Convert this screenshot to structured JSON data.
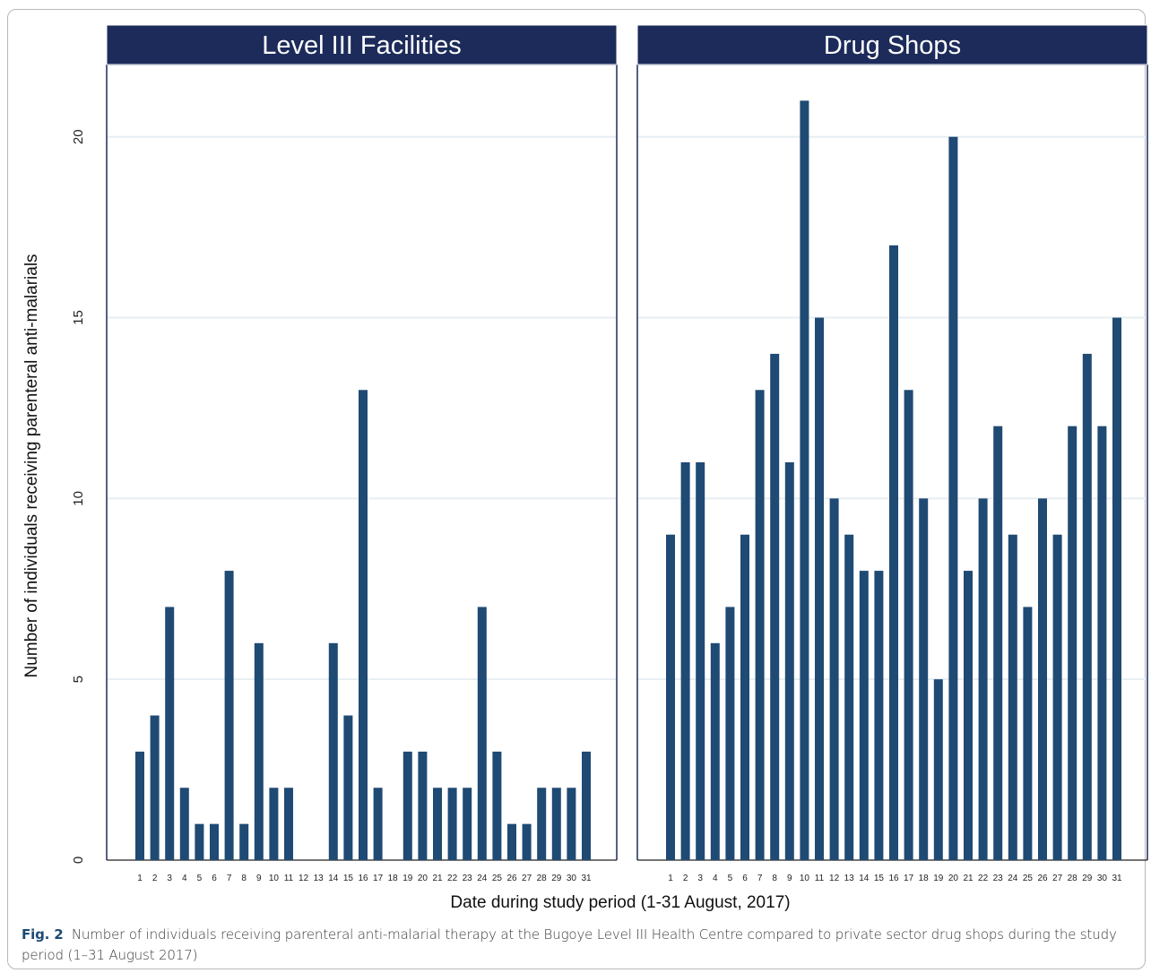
{
  "chart_data": {
    "type": "bar",
    "ylabel": "Number of individuals receiving parenteral anti-malarials",
    "xlabel": "Date during study period (1-31 August, 2017)",
    "yticks": [
      0,
      5,
      10,
      15,
      20
    ],
    "ylim": [
      0,
      22
    ],
    "grid": true,
    "bar_color": "#1f4a73",
    "panel_header_color": "#1c2b5a",
    "categories": [
      "1",
      "2",
      "3",
      "4",
      "5",
      "6",
      "7",
      "8",
      "9",
      "10",
      "11",
      "12",
      "13",
      "14",
      "15",
      "16",
      "17",
      "18",
      "19",
      "20",
      "21",
      "22",
      "23",
      "24",
      "25",
      "26",
      "27",
      "28",
      "29",
      "30",
      "31"
    ],
    "panels": [
      {
        "title": "Level III Facilities",
        "values": [
          3,
          4,
          7,
          2,
          1,
          1,
          8,
          1,
          6,
          2,
          2,
          0,
          0,
          6,
          4,
          13,
          2,
          0,
          3,
          3,
          2,
          2,
          2,
          7,
          3,
          1,
          1,
          2,
          2,
          2,
          3
        ]
      },
      {
        "title": "Drug Shops",
        "values": [
          9,
          11,
          11,
          6,
          7,
          9,
          13,
          14,
          11,
          21,
          15,
          10,
          9,
          8,
          8,
          17,
          13,
          10,
          5,
          20,
          8,
          10,
          12,
          9,
          7,
          10,
          9,
          12,
          14,
          12,
          15
        ]
      }
    ]
  },
  "caption": {
    "label": "Fig. 2",
    "text": "Number of individuals receiving parenteral anti-malarial therapy at the Bugoye Level III Health Centre compared to private sector drug shops during the study period (1–31 August 2017)"
  }
}
